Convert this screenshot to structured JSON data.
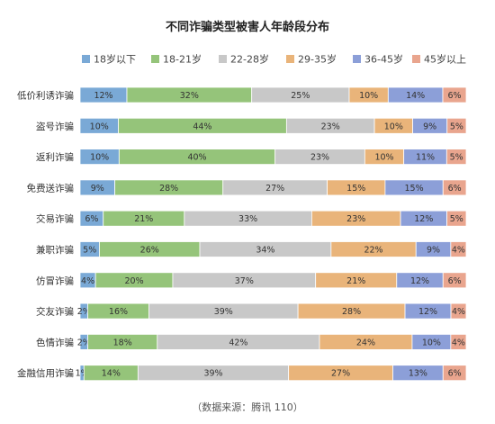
{
  "source": "（数据来源：腾讯 110）",
  "chart_data": {
    "type": "bar",
    "orientation": "horizontal",
    "stacked": true,
    "normalized_percent": true,
    "title": "不同诈骗类型被害人年龄段分布",
    "categories": [
      "低价利诱诈骗",
      "盗号诈骗",
      "返利诈骗",
      "免费送诈骗",
      "交易诈骗",
      "兼职诈骗",
      "仿冒诈骗",
      "交友诈骗",
      "色情诈骗",
      "金融信用诈骗"
    ],
    "series": [
      {
        "name": "18岁以下",
        "color": "#7aa9d6",
        "values": [
          12,
          10,
          10,
          9,
          6,
          5,
          4,
          2,
          2,
          1
        ]
      },
      {
        "name": "18-21岁",
        "color": "#95c47a",
        "values": [
          32,
          44,
          40,
          28,
          21,
          26,
          20,
          16,
          18,
          14
        ]
      },
      {
        "name": "22-28岁",
        "color": "#c8c8c8",
        "values": [
          25,
          23,
          23,
          27,
          33,
          34,
          37,
          39,
          42,
          39
        ]
      },
      {
        "name": "29-35岁",
        "color": "#e9b47a",
        "values": [
          10,
          10,
          10,
          15,
          23,
          22,
          21,
          28,
          24,
          27
        ]
      },
      {
        "name": "36-45岁",
        "color": "#8c9fd8",
        "values": [
          14,
          9,
          11,
          15,
          12,
          9,
          12,
          12,
          10,
          13
        ]
      },
      {
        "name": "45岁以上",
        "color": "#e9a58e",
        "values": [
          6,
          5,
          5,
          6,
          5,
          4,
          6,
          4,
          4,
          6
        ]
      }
    ],
    "legend_position": "top",
    "grid": false
  }
}
